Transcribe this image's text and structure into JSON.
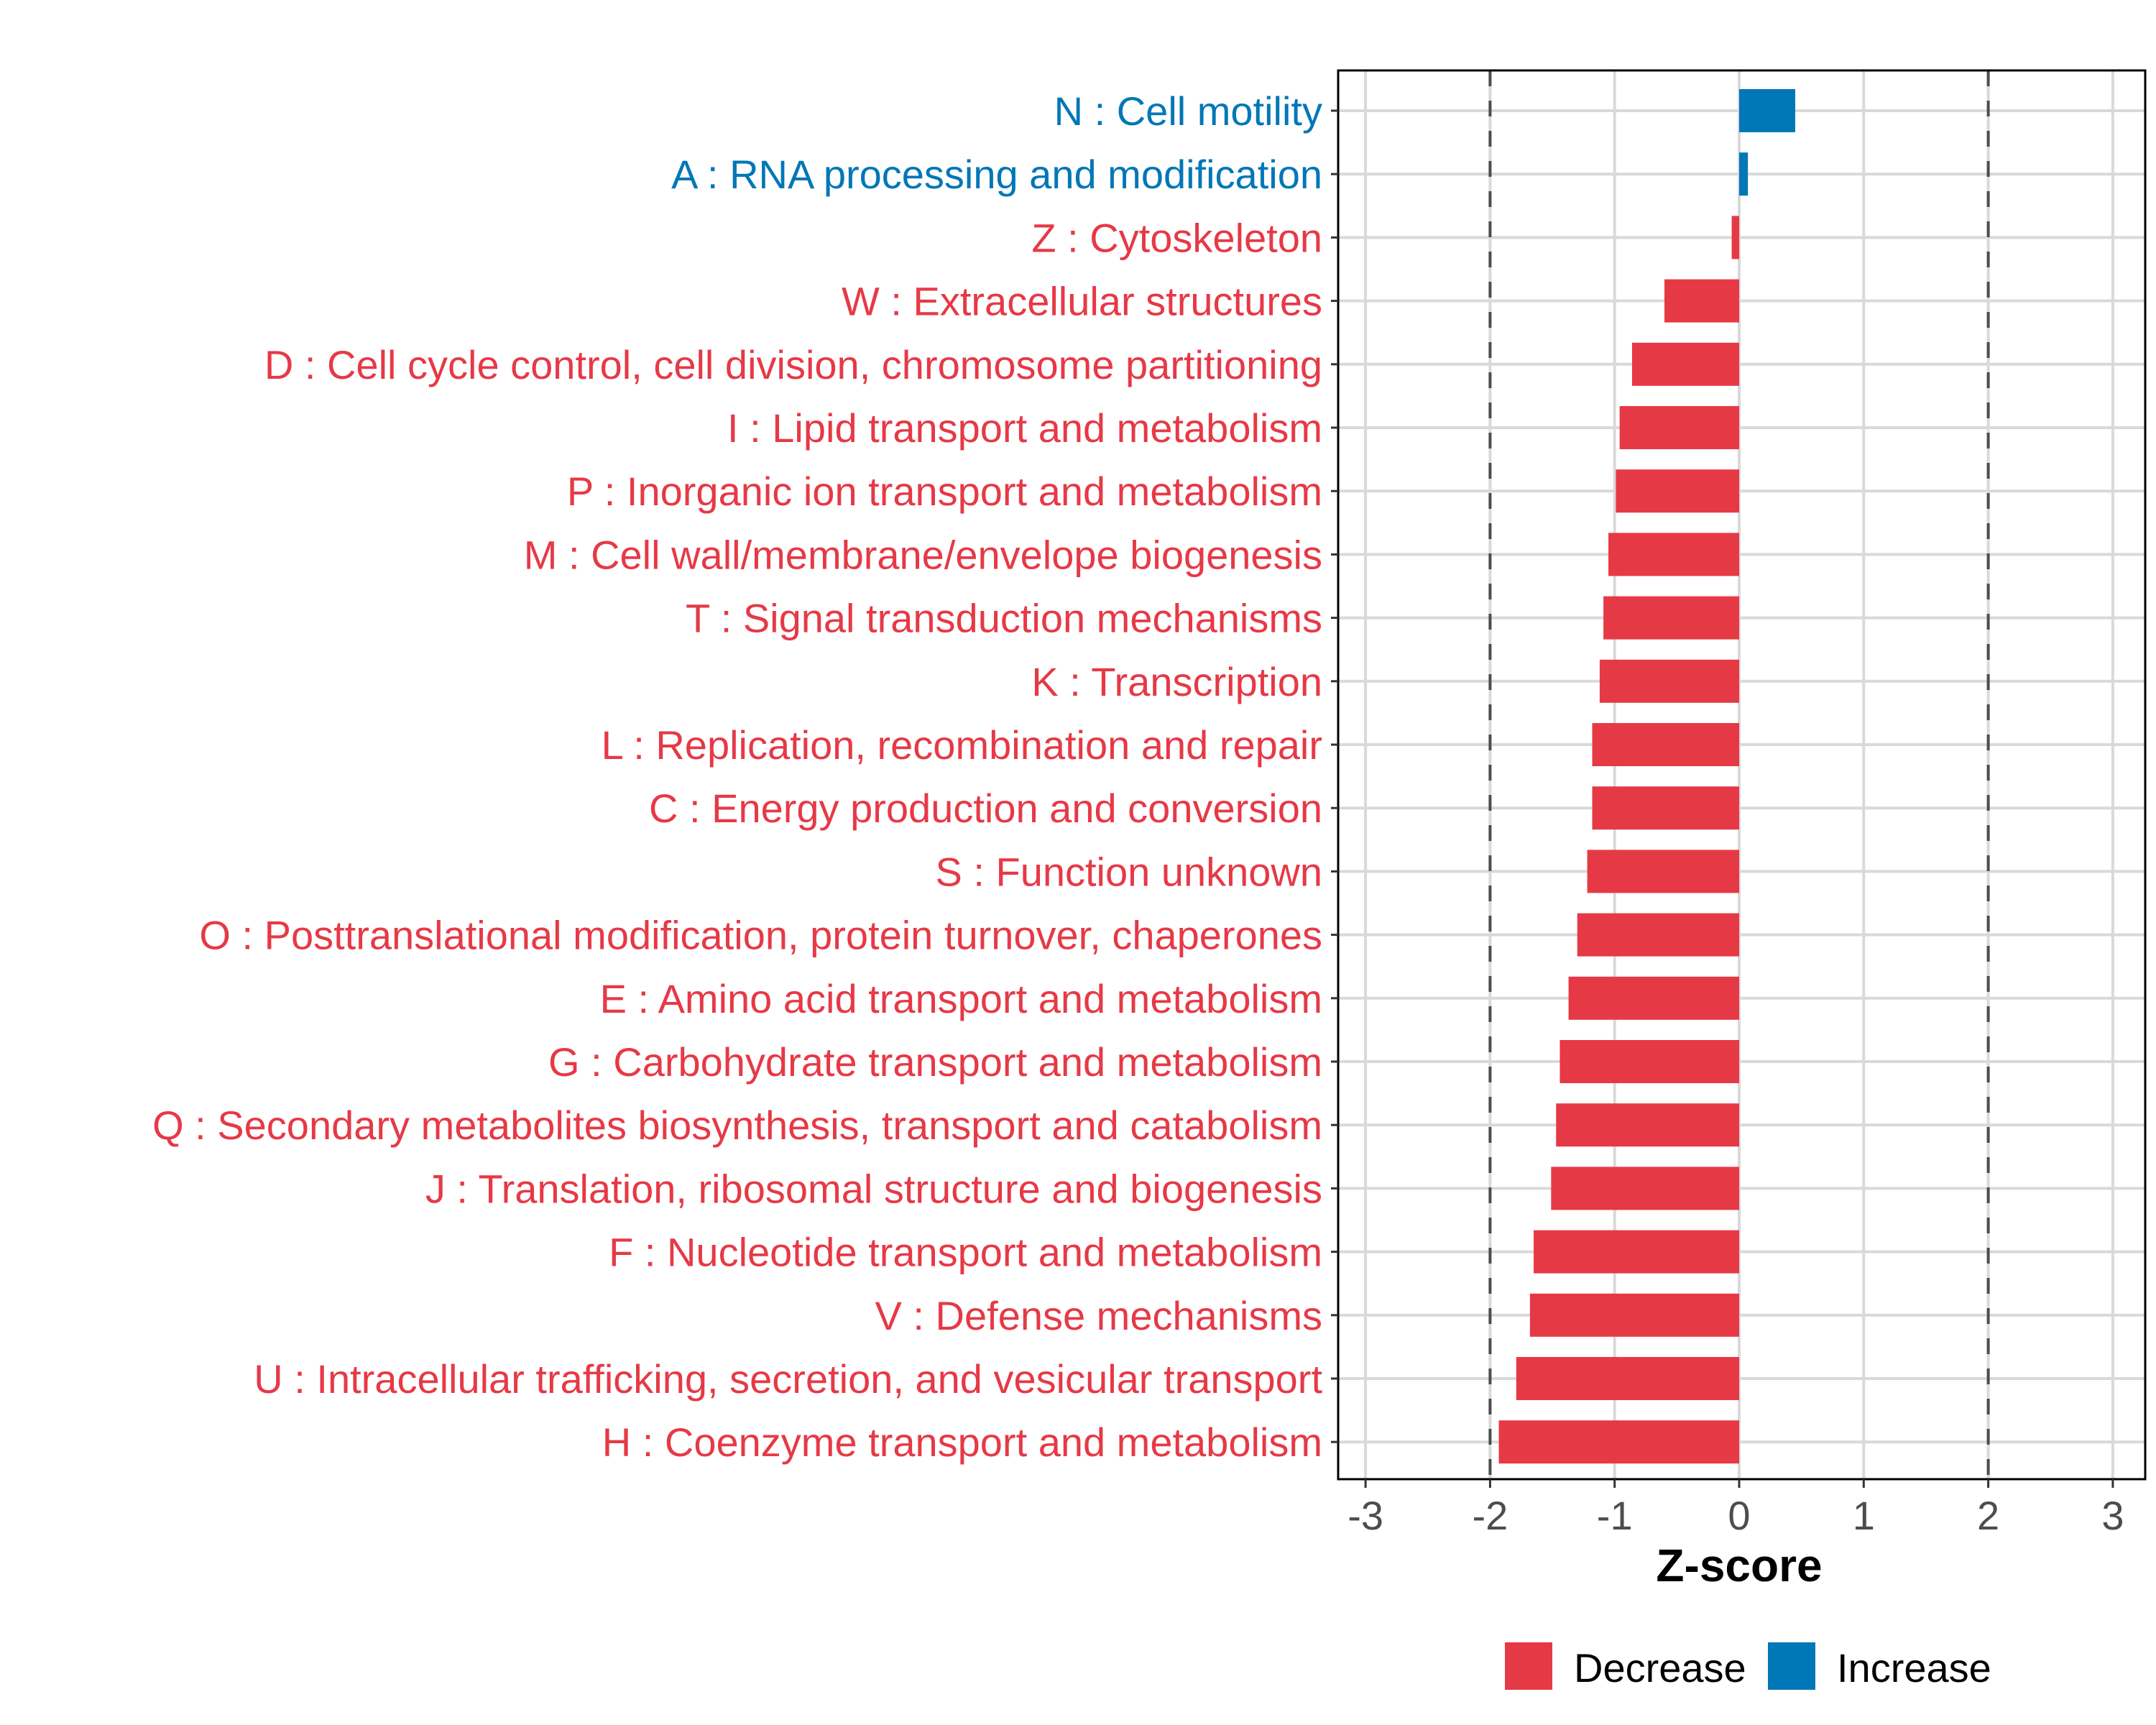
{
  "chart_data": {
    "type": "bar",
    "orientation": "horizontal",
    "title": "",
    "xlabel": "Z-score",
    "ylabel": "",
    "xlim": [
      -3.2,
      3.2
    ],
    "xticks": [
      -3,
      -2,
      -1,
      0,
      1,
      2,
      3
    ],
    "xtick_labels": [
      "-3",
      "-2",
      "-1",
      "0",
      "1",
      "2",
      "3"
    ],
    "reference_lines": [
      -2,
      2
    ],
    "grid": true,
    "legend_position": "bottom",
    "colors": {
      "Decrease": "#e63946",
      "Increase": "#0077b6"
    },
    "legend": [
      {
        "label": "Decrease",
        "color": "#e63946"
      },
      {
        "label": "Increase",
        "color": "#0077b6"
      }
    ],
    "categories": [
      "N : Cell motility",
      "A : RNA processing and modification",
      "Z : Cytoskeleton",
      "W : Extracellular structures",
      "D : Cell cycle control, cell division, chromosome partitioning",
      "I : Lipid transport and metabolism",
      "P : Inorganic ion transport and metabolism",
      "M : Cell wall/membrane/envelope biogenesis",
      "T : Signal transduction mechanisms",
      "K : Transcription",
      "L : Replication, recombination and repair",
      "C : Energy production and conversion",
      "S : Function unknown",
      "O : Posttranslational modification, protein turnover, chaperones",
      "E : Amino acid transport and metabolism",
      "G : Carbohydrate transport and metabolism",
      "Q : Secondary metabolites biosynthesis, transport and catabolism",
      "J : Translation, ribosomal structure and biogenesis",
      "F : Nucleotide transport and metabolism",
      "V : Defense mechanisms",
      "U : Intracellular trafficking, secretion, and vesicular transport",
      "H : Coenzyme transport and metabolism"
    ],
    "values": [
      0.45,
      0.07,
      -0.06,
      -0.6,
      -0.86,
      -0.96,
      -0.99,
      -1.05,
      -1.09,
      -1.12,
      -1.18,
      -1.18,
      -1.22,
      -1.3,
      -1.37,
      -1.44,
      -1.47,
      -1.51,
      -1.65,
      -1.68,
      -1.79,
      -1.93
    ],
    "direction": [
      "Increase",
      "Increase",
      "Decrease",
      "Decrease",
      "Decrease",
      "Decrease",
      "Decrease",
      "Decrease",
      "Decrease",
      "Decrease",
      "Decrease",
      "Decrease",
      "Decrease",
      "Decrease",
      "Decrease",
      "Decrease",
      "Decrease",
      "Decrease",
      "Decrease",
      "Decrease",
      "Decrease",
      "Decrease"
    ]
  }
}
